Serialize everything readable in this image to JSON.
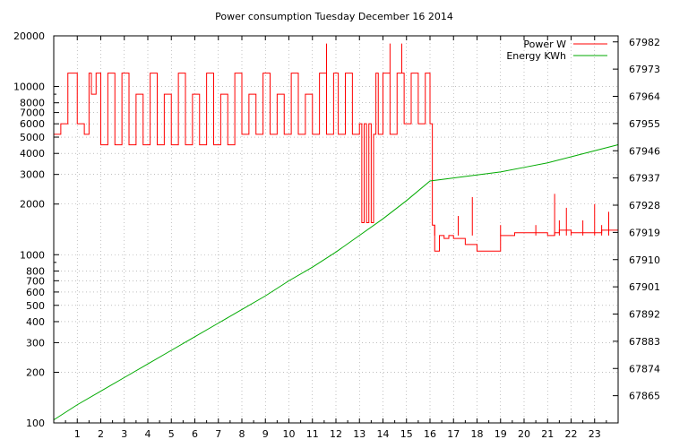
{
  "chart_data": {
    "type": "line",
    "title": "Power consumption Tuesday December 16 2014",
    "xlabel": "",
    "ylabel": "",
    "xlim": [
      0,
      24
    ],
    "x_ticks": [
      "1",
      "2",
      "3",
      "4",
      "5",
      "6",
      "7",
      "8",
      "9",
      "10",
      "11",
      "12",
      "13",
      "14",
      "15",
      "16",
      "17",
      "18",
      "19",
      "20",
      "21",
      "22",
      "23"
    ],
    "y_scale": "log",
    "ylim": [
      100,
      20000
    ],
    "y_ticks": [
      "100",
      "200",
      "300",
      "400",
      "500",
      "600",
      "700",
      "800",
      "1000",
      "2000",
      "3000",
      "4000",
      "5000",
      "6000",
      "7000",
      "8000",
      "10000",
      "20000"
    ],
    "y2lim": [
      67856,
      67984
    ],
    "y2_ticks": [
      "67865",
      "67874",
      "67883",
      "67892",
      "67901",
      "67910",
      "67919",
      "67928",
      "67937",
      "67946",
      "67955",
      "67964",
      "67973",
      "67982"
    ],
    "grid": true,
    "legend_position": "top-right",
    "series": [
      {
        "name": "Power W",
        "color": "#ff0000",
        "axis": "left",
        "x": [
          0.0,
          0.3,
          0.6,
          1.0,
          1.3,
          1.5,
          1.6,
          1.8,
          2.0,
          2.3,
          2.6,
          2.9,
          3.2,
          3.5,
          3.8,
          4.1,
          4.4,
          4.7,
          5.0,
          5.3,
          5.6,
          5.9,
          6.2,
          6.5,
          6.8,
          7.1,
          7.4,
          7.7,
          8.0,
          8.3,
          8.6,
          8.9,
          9.2,
          9.5,
          9.8,
          10.1,
          10.4,
          10.7,
          11.0,
          11.3,
          11.6,
          11.9,
          12.1,
          12.4,
          12.7,
          13.0,
          13.1,
          13.2,
          13.3,
          13.4,
          13.5,
          13.6,
          13.7,
          13.8,
          14.0,
          14.3,
          14.6,
          14.9,
          15.2,
          15.5,
          15.8,
          16.0,
          16.1,
          16.2,
          16.4,
          16.6,
          16.8,
          17.0,
          17.5,
          18.0,
          18.3,
          18.6,
          19.0,
          19.3,
          19.6,
          20.0,
          20.5,
          21.0,
          21.3,
          21.5,
          22.0,
          22.5,
          23.0,
          23.3,
          23.6,
          23.9
        ],
        "y": [
          5200,
          6000,
          12000,
          6000,
          5200,
          12000,
          9000,
          12000,
          4500,
          12000,
          4500,
          12000,
          4500,
          9000,
          4500,
          12000,
          4500,
          9000,
          4500,
          12000,
          4500,
          9000,
          4500,
          12000,
          4500,
          9000,
          4500,
          12000,
          5200,
          9000,
          5200,
          12000,
          5200,
          9000,
          5200,
          12000,
          5200,
          9000,
          5200,
          12000,
          5200,
          12000,
          5200,
          12000,
          5200,
          6000,
          1550,
          6000,
          1550,
          6000,
          1550,
          5200,
          12000,
          5200,
          12000,
          5200,
          12000,
          6000,
          12000,
          6000,
          12000,
          6000,
          1500,
          1050,
          1300,
          1250,
          1300,
          1250,
          1150,
          1050,
          1050,
          1050,
          1300,
          1300,
          1350,
          1350,
          1350,
          1300,
          1350,
          1400,
          1350,
          1350,
          1350,
          1400,
          1400,
          1400
        ],
        "spikes": [
          {
            "x": 11.6,
            "y": 18000
          },
          {
            "x": 14.3,
            "y": 18000
          },
          {
            "x": 14.8,
            "y": 18000
          },
          {
            "x": 16.2,
            "y": 1500
          },
          {
            "x": 17.2,
            "y": 1700
          },
          {
            "x": 17.8,
            "y": 2200
          },
          {
            "x": 19.0,
            "y": 1500
          },
          {
            "x": 20.5,
            "y": 1500
          },
          {
            "x": 21.3,
            "y": 2300
          },
          {
            "x": 21.5,
            "y": 1600
          },
          {
            "x": 21.8,
            "y": 1900
          },
          {
            "x": 22.0,
            "y": 1400
          },
          {
            "x": 22.5,
            "y": 1600
          },
          {
            "x": 23.0,
            "y": 2000
          },
          {
            "x": 23.3,
            "y": 1500
          },
          {
            "x": 23.6,
            "y": 1800
          }
        ]
      },
      {
        "name": "Energy KWh",
        "color": "#00aa00",
        "axis": "right",
        "x": [
          0,
          1,
          2,
          3,
          4,
          5,
          6,
          7,
          8,
          9,
          10,
          11,
          12,
          13,
          14,
          15,
          16,
          17,
          18,
          19,
          20,
          21,
          22,
          23,
          24
        ],
        "y": [
          67857,
          67862,
          67866.5,
          67871,
          67875.5,
          67880,
          67884.5,
          67889,
          67893.5,
          67898,
          67903,
          67907.5,
          67912.5,
          67918,
          67923.5,
          67929.5,
          67936,
          67937,
          67938,
          67939,
          67940.5,
          67942,
          67944,
          67946,
          67948
        ]
      }
    ]
  }
}
